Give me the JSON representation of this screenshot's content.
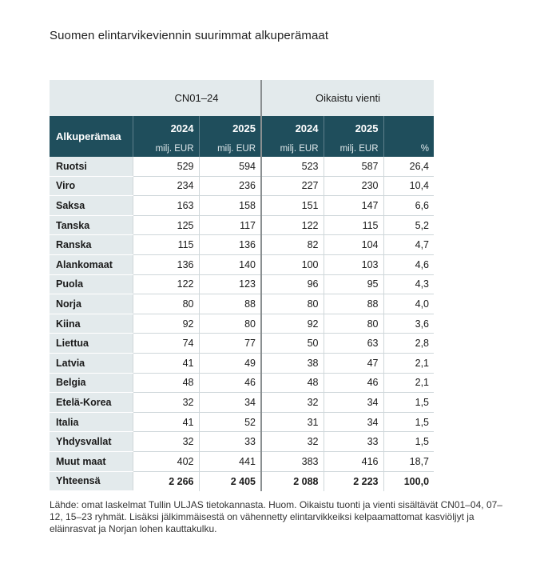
{
  "title": "Suomen elintarvikeviennin suurimmat alkuperämaat",
  "table": {
    "group_headers": {
      "cn": "CN01–24",
      "adjusted": "Oikaistu vienti"
    },
    "row_header": "Alkuperämaa",
    "year_headers": [
      "2024",
      "2025",
      "2024",
      "2025",
      ""
    ],
    "unit_headers": [
      "milj. EUR",
      "milj. EUR",
      "milj. EUR",
      "milj. EUR",
      "%"
    ],
    "rows": [
      {
        "country": "Ruotsi",
        "values": [
          "529",
          "594",
          "523",
          "587",
          "26,4"
        ]
      },
      {
        "country": "Viro",
        "values": [
          "234",
          "236",
          "227",
          "230",
          "10,4"
        ]
      },
      {
        "country": "Saksa",
        "values": [
          "163",
          "158",
          "151",
          "147",
          "6,6"
        ]
      },
      {
        "country": "Tanska",
        "values": [
          "125",
          "117",
          "122",
          "115",
          "5,2"
        ]
      },
      {
        "country": "Ranska",
        "values": [
          "115",
          "136",
          "82",
          "104",
          "4,7"
        ]
      },
      {
        "country": "Alankomaat",
        "values": [
          "136",
          "140",
          "100",
          "103",
          "4,6"
        ]
      },
      {
        "country": "Puola",
        "values": [
          "122",
          "123",
          "96",
          "95",
          "4,3"
        ]
      },
      {
        "country": "Norja",
        "values": [
          "80",
          "88",
          "80",
          "88",
          "4,0"
        ]
      },
      {
        "country": "Kiina",
        "values": [
          "92",
          "80",
          "92",
          "80",
          "3,6"
        ]
      },
      {
        "country": "Liettua",
        "values": [
          "74",
          "77",
          "50",
          "63",
          "2,8"
        ]
      },
      {
        "country": "Latvia",
        "values": [
          "41",
          "49",
          "38",
          "47",
          "2,1"
        ]
      },
      {
        "country": "Belgia",
        "values": [
          "48",
          "46",
          "48",
          "46",
          "2,1"
        ]
      },
      {
        "country": "Etelä-Korea",
        "values": [
          "32",
          "34",
          "32",
          "34",
          "1,5"
        ]
      },
      {
        "country": "Italia",
        "values": [
          "41",
          "52",
          "31",
          "34",
          "1,5"
        ]
      },
      {
        "country": "Yhdysvallat",
        "values": [
          "32",
          "33",
          "32",
          "33",
          "1,5"
        ]
      },
      {
        "country": "Muut maat",
        "values": [
          "402",
          "441",
          "383",
          "416",
          "18,7"
        ]
      }
    ],
    "total": {
      "country": "Yhteensä",
      "values": [
        "2 266",
        "2 405",
        "2 088",
        "2 223",
        "100,0"
      ]
    }
  },
  "note": "Lähde: omat laskelmat Tullin ULJAS tietokannasta. Huom. Oikaistu tuonti ja vienti sisältävät CN01–04, 07–12, 15–23 ryhmät. Lisäksi jälkimmäisestä on vähennetty elintarvikkeiksi kelpaamattomat kasviöljyt ja eläinrasvat ja Norjan lohen kauttakulku.",
  "colors": {
    "header_bg": "#1f4e5c",
    "light_bg": "#e3eaec",
    "separator": "#8a8f91"
  }
}
